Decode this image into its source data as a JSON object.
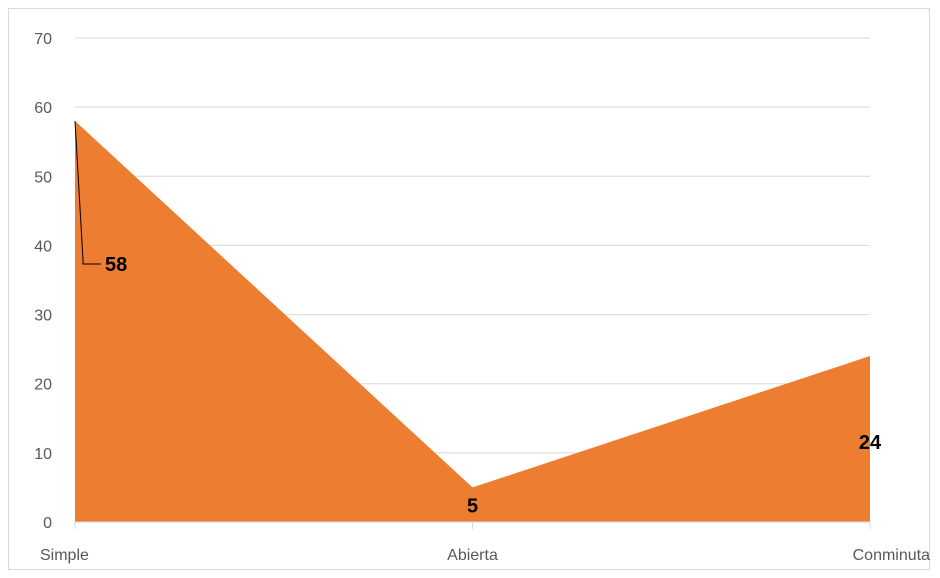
{
  "chart_data": {
    "type": "area",
    "title": "",
    "xlabel": "",
    "ylabel": "",
    "categories": [
      "Simple",
      "Abierta",
      "Conminuta"
    ],
    "values": [
      58,
      5,
      24
    ],
    "data_labels": [
      "58",
      "5",
      "24"
    ],
    "ylim": [
      0,
      70
    ],
    "yticks": [
      0,
      10,
      20,
      30,
      40,
      50,
      60,
      70
    ],
    "ytick_labels": [
      "0",
      "10",
      "20",
      "30",
      "40",
      "50",
      "60",
      "70"
    ],
    "grid": true,
    "legend": "none",
    "colors": {
      "fill": "#ed7d31",
      "grid": "#d9d9d9",
      "axis_text": "#595959",
      "label_text": "#000000"
    }
  }
}
